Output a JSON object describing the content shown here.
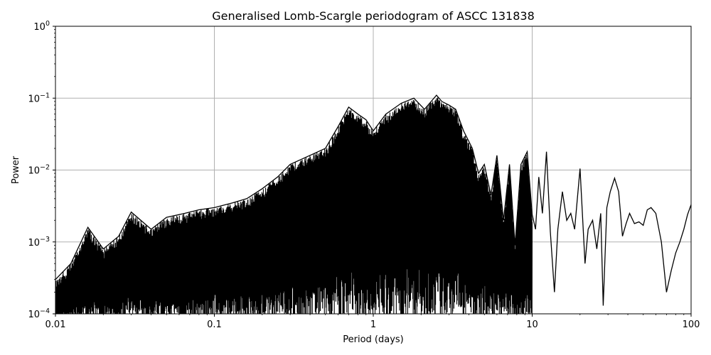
{
  "chart_data": {
    "type": "line",
    "title": "Generalised Lomb-Scargle periodogram of ASCC 131838",
    "xlabel": "Period (days)",
    "ylabel": "Power",
    "xscale": "log",
    "yscale": "log",
    "xlim": [
      0.01,
      100
    ],
    "ylim": [
      0.0001,
      1
    ],
    "grid": true,
    "x_ticks": [
      0.01,
      0.1,
      1,
      10,
      100
    ],
    "x_tick_labels": [
      "0.01",
      "0.1",
      "1",
      "10",
      "100"
    ],
    "y_ticks": [
      0.0001,
      0.001,
      0.01,
      0.1,
      1
    ],
    "y_tick_labels": [
      {
        "base": "10",
        "exp": "−4"
      },
      {
        "base": "10",
        "exp": "−3"
      },
      {
        "base": "10",
        "exp": "−2"
      },
      {
        "base": "10",
        "exp": "−1"
      },
      {
        "base": "10",
        "exp": "0"
      }
    ],
    "line_color": "#000000",
    "grid_color": "#b0b0b0",
    "series": [
      {
        "x": [
          0.01,
          0.0125,
          0.016,
          0.02,
          0.025,
          0.03,
          0.04,
          0.05,
          0.065,
          0.08,
          0.1,
          0.13,
          0.16,
          0.2,
          0.25,
          0.3,
          0.4,
          0.5,
          0.6,
          0.7,
          0.8,
          0.9,
          1.0,
          1.2,
          1.5,
          1.8,
          2.1,
          2.5,
          2.7,
          3.0,
          3.3,
          3.7,
          4.2,
          4.6,
          5.0,
          5.5,
          6.0,
          6.6,
          7.2,
          7.8,
          8.5,
          9.3,
          10.0,
          10.5,
          11.0,
          11.6,
          12.3,
          13.0,
          13.8,
          14.5,
          15.5,
          16.5,
          17.5,
          18.5,
          20.0,
          21.5,
          22.5,
          24.0,
          25.5,
          27.0,
          28.0,
          29.5,
          31.0,
          33.0,
          35.0,
          37.0,
          39.0,
          41.0,
          44.0,
          47.0,
          50.0,
          53.0,
          56.0,
          60.0,
          65.0,
          70.0,
          75.0,
          80.0,
          85.0,
          90.0,
          95.0,
          100.0
        ],
        "y": [
          0.0003,
          0.0005,
          0.0016,
          0.0008,
          0.0012,
          0.0026,
          0.0015,
          0.0022,
          0.0025,
          0.0028,
          0.003,
          0.0035,
          0.004,
          0.0055,
          0.008,
          0.012,
          0.016,
          0.02,
          0.04,
          0.075,
          0.06,
          0.05,
          0.035,
          0.06,
          0.085,
          0.1,
          0.07,
          0.11,
          0.09,
          0.08,
          0.07,
          0.035,
          0.02,
          0.009,
          0.012,
          0.0045,
          0.016,
          0.002,
          0.012,
          0.0009,
          0.012,
          0.018,
          0.0024,
          0.0015,
          0.008,
          0.0025,
          0.018,
          0.0014,
          0.0002,
          0.0015,
          0.005,
          0.002,
          0.0025,
          0.0015,
          0.0105,
          0.0005,
          0.0015,
          0.002,
          0.0008,
          0.0025,
          0.00013,
          0.003,
          0.005,
          0.0077,
          0.005,
          0.0012,
          0.0018,
          0.0025,
          0.0018,
          0.0019,
          0.0017,
          0.0028,
          0.003,
          0.0025,
          0.001,
          0.0002,
          0.0004,
          0.0007,
          0.001,
          0.0015,
          0.0024,
          0.0033
        ]
      }
    ]
  }
}
